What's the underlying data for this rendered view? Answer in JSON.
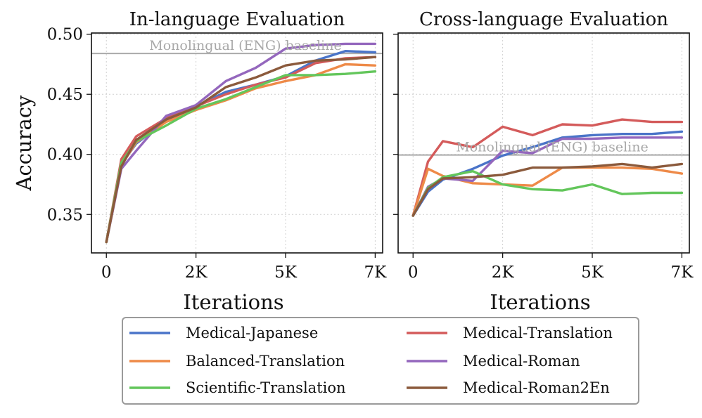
{
  "chart_data": [
    {
      "type": "line",
      "title": "In-language Evaluation",
      "xlabel": "Iterations",
      "ylabel": "Accuracy",
      "xlim": [
        -400,
        7400
      ],
      "ylim": [
        0.318,
        0.501
      ],
      "x_ticks": [
        {
          "value": 0,
          "label": "0"
        },
        {
          "value": 2400,
          "label": "2K"
        },
        {
          "value": 4800,
          "label": "5K"
        },
        {
          "value": 7200,
          "label": "7K"
        }
      ],
      "y_ticks": [
        {
          "value": 0.35,
          "label": "0.35"
        },
        {
          "value": 0.4,
          "label": "0.40"
        },
        {
          "value": 0.45,
          "label": "0.45"
        },
        {
          "value": 0.5,
          "label": "0.50"
        }
      ],
      "grid": true,
      "baseline": {
        "label": "Monolingual (ENG) baseline",
        "value": 0.484
      },
      "x": [
        0,
        400,
        800,
        1600,
        2400,
        3200,
        4000,
        4800,
        5600,
        6400,
        7200
      ],
      "series": [
        {
          "name": "Medical-Japanese",
          "values": [
            0.327,
            0.392,
            0.409,
            0.428,
            0.44,
            0.452,
            0.458,
            0.465,
            0.478,
            0.486,
            0.485
          ]
        },
        {
          "name": "Medical-Translation",
          "values": [
            0.327,
            0.396,
            0.415,
            0.43,
            0.44,
            0.45,
            0.458,
            0.464,
            0.476,
            0.48,
            0.481
          ]
        },
        {
          "name": "Balanced-Translation",
          "values": [
            0.327,
            0.391,
            0.41,
            0.427,
            0.437,
            0.445,
            0.455,
            0.461,
            0.466,
            0.475,
            0.474
          ]
        },
        {
          "name": "Medical-Roman",
          "values": [
            0.327,
            0.388,
            0.403,
            0.432,
            0.441,
            0.461,
            0.472,
            0.488,
            0.491,
            0.492,
            0.492
          ]
        },
        {
          "name": "Scientific-Translation",
          "values": [
            0.327,
            0.393,
            0.411,
            0.424,
            0.438,
            0.446,
            0.456,
            0.466,
            0.466,
            0.467,
            0.469
          ]
        },
        {
          "name": "Medical-Roman2En",
          "values": [
            0.327,
            0.39,
            0.412,
            0.429,
            0.439,
            0.456,
            0.464,
            0.474,
            0.478,
            0.479,
            0.481
          ]
        }
      ]
    },
    {
      "type": "line",
      "title": "Cross-language Evaluation",
      "xlabel": "Iterations",
      "ylabel": "",
      "xlim": [
        -400,
        7400
      ],
      "ylim": [
        0.318,
        0.501
      ],
      "x_ticks": [
        {
          "value": 0,
          "label": "0"
        },
        {
          "value": 2400,
          "label": "2K"
        },
        {
          "value": 4800,
          "label": "5K"
        },
        {
          "value": 7200,
          "label": "7K"
        }
      ],
      "y_ticks": [
        {
          "value": 0.35,
          "label": ""
        },
        {
          "value": 0.4,
          "label": ""
        },
        {
          "value": 0.45,
          "label": ""
        },
        {
          "value": 0.5,
          "label": ""
        }
      ],
      "grid": true,
      "baseline": {
        "label": "Monolingual (ENG) baseline",
        "value": 0.3995
      },
      "x": [
        0,
        400,
        800,
        1600,
        2400,
        3200,
        4000,
        4800,
        5600,
        6400,
        7200
      ],
      "series": [
        {
          "name": "Medical-Japanese",
          "values": [
            0.349,
            0.369,
            0.379,
            0.388,
            0.399,
            0.406,
            0.414,
            0.416,
            0.417,
            0.417,
            0.419
          ]
        },
        {
          "name": "Medical-Translation",
          "values": [
            0.349,
            0.394,
            0.411,
            0.406,
            0.423,
            0.416,
            0.425,
            0.424,
            0.429,
            0.427,
            0.427
          ]
        },
        {
          "name": "Balanced-Translation",
          "values": [
            0.349,
            0.388,
            0.382,
            0.376,
            0.375,
            0.374,
            0.389,
            0.389,
            0.389,
            0.388,
            0.384
          ]
        },
        {
          "name": "Medical-Roman",
          "values": [
            0.349,
            0.373,
            0.38,
            0.378,
            0.403,
            0.401,
            0.413,
            0.413,
            0.414,
            0.414,
            0.414
          ]
        },
        {
          "name": "Scientific-Translation",
          "values": [
            0.349,
            0.372,
            0.381,
            0.386,
            0.375,
            0.371,
            0.37,
            0.375,
            0.367,
            0.368,
            0.368
          ]
        },
        {
          "name": "Medical-Roman2En",
          "values": [
            0.349,
            0.371,
            0.38,
            0.381,
            0.383,
            0.389,
            0.389,
            0.39,
            0.392,
            0.389,
            0.392
          ]
        }
      ]
    }
  ],
  "legend": [
    {
      "name": "Medical-Japanese",
      "color": "#4a74c8"
    },
    {
      "name": "Medical-Translation",
      "color": "#d45b5b"
    },
    {
      "name": "Balanced-Translation",
      "color": "#ee8a48"
    },
    {
      "name": "Medical-Roman",
      "color": "#9467bd"
    },
    {
      "name": "Scientific-Translation",
      "color": "#63c65b"
    },
    {
      "name": "Medical-Roman2En",
      "color": "#8b5a3c"
    }
  ]
}
